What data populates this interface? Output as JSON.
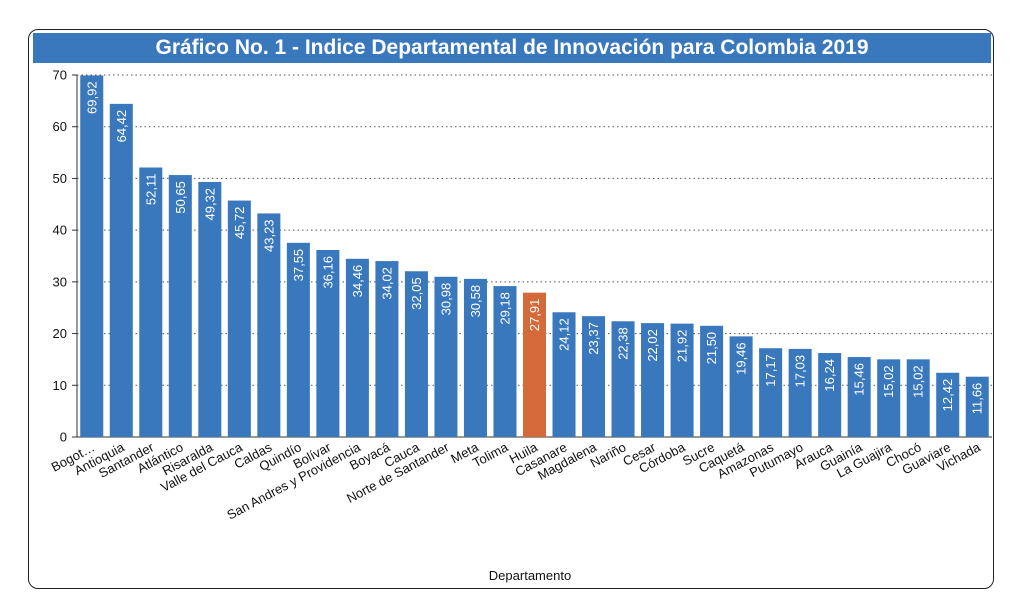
{
  "chart_data": {
    "type": "bar",
    "title": "Gráfico No. 1 - Indice Departamental de Innovación para Colombia 2019",
    "xlabel": "Departamento",
    "ylabel": "",
    "ylim": [
      0,
      70
    ],
    "yticks": [
      0,
      10,
      20,
      30,
      40,
      50,
      60,
      70
    ],
    "grid": true,
    "bar_color": "#3a78bd",
    "highlight_color": "#d4693a",
    "highlight_category": "Huila",
    "categories": [
      "Bogot…",
      "Antioquia",
      "Santander",
      "Atlántico",
      "Risaralda",
      "Valle del Cauca",
      "Caldas",
      "Quindío",
      "Bolívar",
      "San Andres y Providencia",
      "Boyacá",
      "Cauca",
      "Norte de Santander",
      "Meta",
      "Tolima",
      "Huila",
      "Casanare",
      "Magdalena",
      "Nariño",
      "Cesar",
      "Córdoba",
      "Sucre",
      "Caquetá",
      "Amazonas",
      "Putumayo",
      "Arauca",
      "Guainía",
      "La Guajira",
      "Chocó",
      "Guaviare",
      "Vichada"
    ],
    "values": [
      69.92,
      64.42,
      52.11,
      50.65,
      49.32,
      45.72,
      43.23,
      37.55,
      36.16,
      34.46,
      34.02,
      32.05,
      30.98,
      30.58,
      29.18,
      27.91,
      24.12,
      23.37,
      22.38,
      22.02,
      21.92,
      21.5,
      19.46,
      17.17,
      17.03,
      16.24,
      15.46,
      15.02,
      15.02,
      12.42,
      11.66
    ],
    "value_labels": [
      "69,92",
      "64,42",
      "52,11",
      "50,65",
      "49,32",
      "45,72",
      "43,23",
      "37,55",
      "36,16",
      "34,46",
      "34,02",
      "32,05",
      "30,98",
      "30,58",
      "29,18",
      "27,91",
      "24,12",
      "23,37",
      "22,38",
      "22,02",
      "21,92",
      "21,50",
      "19,46",
      "17,17",
      "17,03",
      "16,24",
      "15,46",
      "15,02",
      "15,02",
      "12,42",
      "11,66"
    ]
  }
}
